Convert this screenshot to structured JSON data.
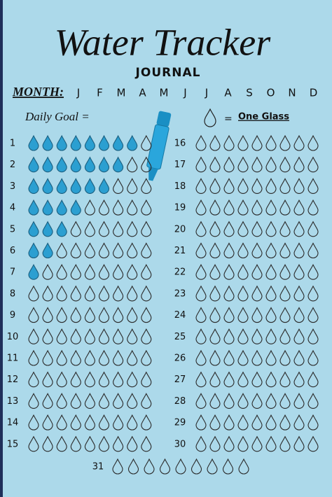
{
  "header": {
    "title": "Water Tracker",
    "subtitle": "JOURNAL",
    "month_label": "MONTH:",
    "months": [
      "J",
      "F",
      "M",
      "A",
      "M",
      "J",
      "J",
      "A",
      "S",
      "O",
      "N",
      "D"
    ]
  },
  "goal": {
    "label": "Daily Goal =",
    "legend_equals": "=",
    "legend_text": "One Glass"
  },
  "drops_per_day": 9,
  "days": [
    {
      "label": "1",
      "filled": 8
    },
    {
      "label": "2",
      "filled": 7
    },
    {
      "label": "3",
      "filled": 6
    },
    {
      "label": "4",
      "filled": 4
    },
    {
      "label": "5",
      "filled": 3
    },
    {
      "label": "6",
      "filled": 2
    },
    {
      "label": "7",
      "filled": 1
    },
    {
      "label": "8",
      "filled": 0
    },
    {
      "label": "9",
      "filled": 0
    },
    {
      "label": "10",
      "filled": 0
    },
    {
      "label": "11",
      "filled": 0
    },
    {
      "label": "12",
      "filled": 0
    },
    {
      "label": "13",
      "filled": 0
    },
    {
      "label": "14",
      "filled": 0
    },
    {
      "label": "15",
      "filled": 0
    },
    {
      "label": "16",
      "filled": 0
    },
    {
      "label": "17",
      "filled": 0
    },
    {
      "label": "18",
      "filled": 0
    },
    {
      "label": "19",
      "filled": 0
    },
    {
      "label": "20",
      "filled": 0
    },
    {
      "label": "21",
      "filled": 0
    },
    {
      "label": "22",
      "filled": 0
    },
    {
      "label": "23",
      "filled": 0
    },
    {
      "label": "24",
      "filled": 0
    },
    {
      "label": "25",
      "filled": 0
    },
    {
      "label": "26",
      "filled": 0
    },
    {
      "label": "27",
      "filled": 0
    },
    {
      "label": "28",
      "filled": 0
    },
    {
      "label": "29",
      "filled": 0
    },
    {
      "label": "30",
      "filled": 0
    },
    {
      "label": "31",
      "filled": 0
    }
  ]
}
